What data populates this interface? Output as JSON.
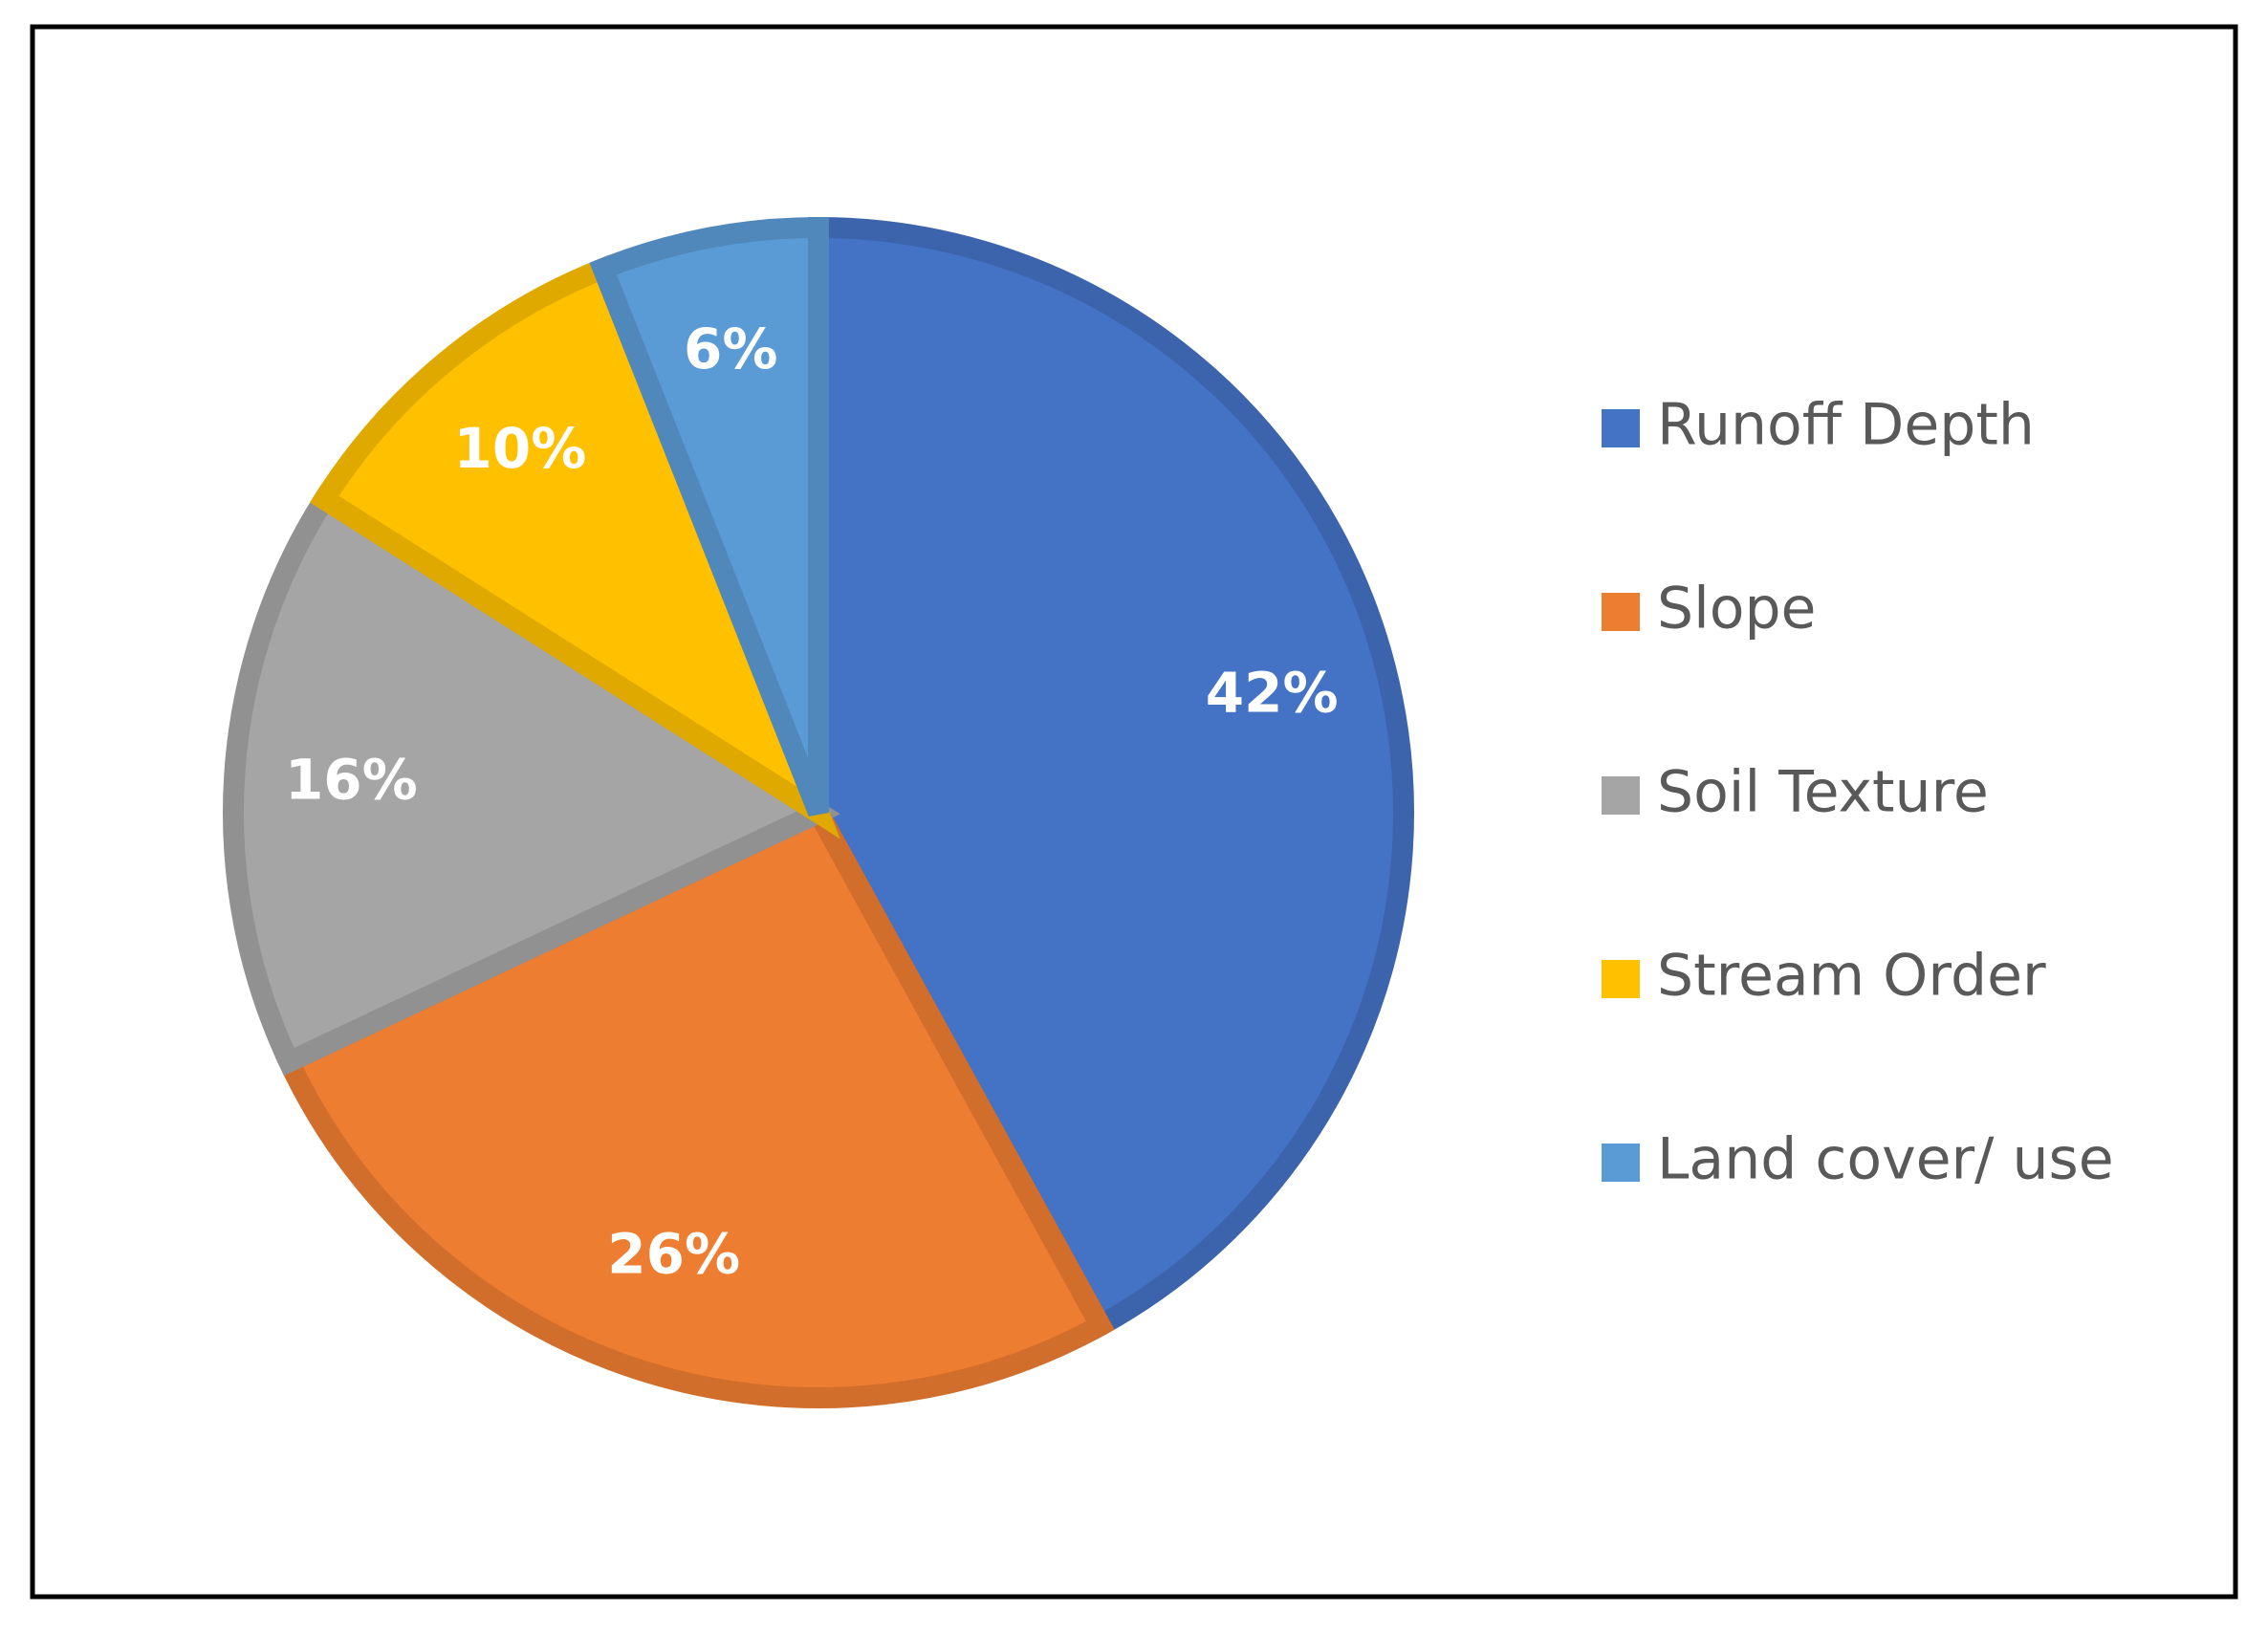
{
  "chart_data": {
    "type": "pie",
    "categories": [
      "Runoff Depth",
      "Slope",
      "Soil Texture",
      "Stream Order",
      "Land cover/ use"
    ],
    "values": [
      42,
      26,
      16,
      10,
      6
    ],
    "value_labels": [
      "42%",
      "26%",
      "16%",
      "10%",
      "6%"
    ],
    "colors": [
      "#4472c4",
      "#ed7d31",
      "#a5a5a5",
      "#ffc000",
      "#5b9bd5"
    ],
    "legend": "right"
  }
}
